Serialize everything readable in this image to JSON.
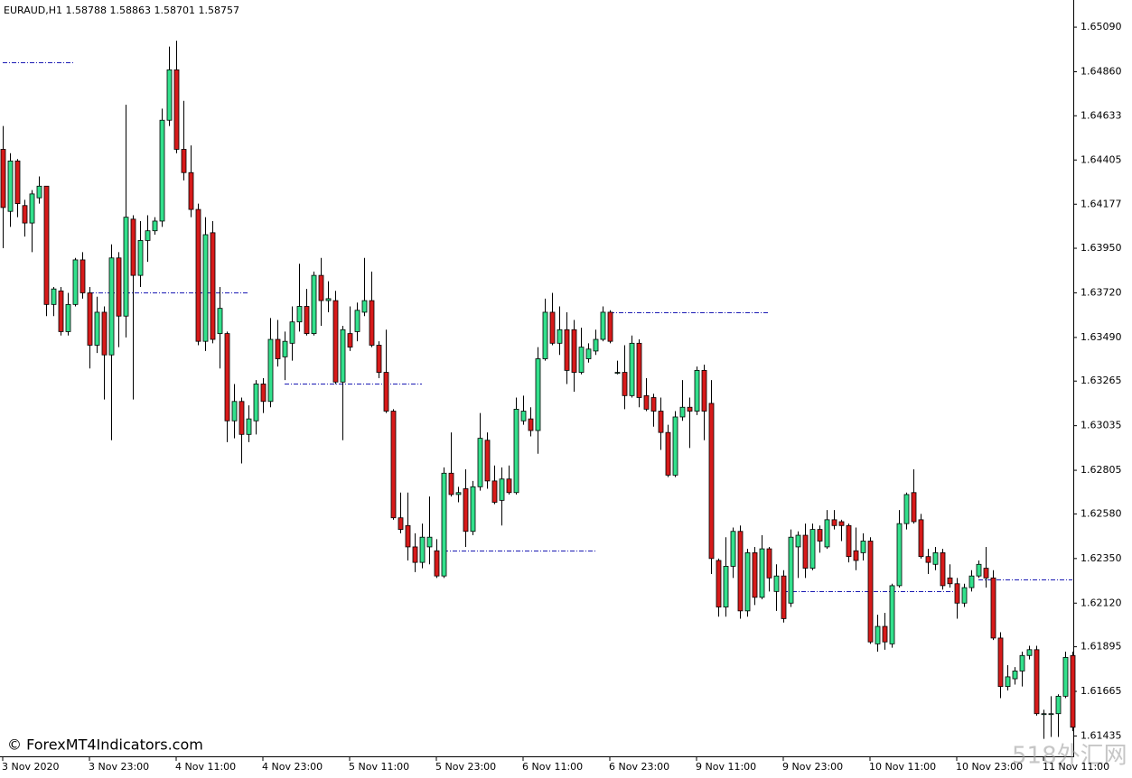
{
  "chart_data": {
    "type": "candlestick",
    "title": "EURAUD,H1  1.58788 1.58863 1.58701 1.58757",
    "watermark": "© ForexMT4Indicators.com",
    "watermark2": "518外汇网",
    "up_color": "#33e08c",
    "down_color": "#d71a1a",
    "level_color": "#1a1ab4",
    "xlim": [
      0,
      148
    ],
    "ylim": [
      1.6133,
      1.6523
    ],
    "yticks": [
      {
        "value": 1.6509,
        "label": "1.65090"
      },
      {
        "value": 1.6486,
        "label": "1.64860"
      },
      {
        "value": 1.64633,
        "label": "1.64633"
      },
      {
        "value": 1.64405,
        "label": "1.64405"
      },
      {
        "value": 1.64177,
        "label": "1.64177"
      },
      {
        "value": 1.6395,
        "label": "1.63950"
      },
      {
        "value": 1.6372,
        "label": "1.63720"
      },
      {
        "value": 1.6349,
        "label": "1.63490"
      },
      {
        "value": 1.63265,
        "label": "1.63265"
      },
      {
        "value": 1.63035,
        "label": "1.63035"
      },
      {
        "value": 1.62805,
        "label": "1.62805"
      },
      {
        "value": 1.6258,
        "label": "1.62580"
      },
      {
        "value": 1.6235,
        "label": "1.62350"
      },
      {
        "value": 1.6212,
        "label": "1.62120"
      },
      {
        "value": 1.61895,
        "label": "1.61895"
      },
      {
        "value": 1.61665,
        "label": "1.61665"
      },
      {
        "value": 1.61435,
        "label": "1.61435"
      }
    ],
    "xticks": [
      {
        "value": 0,
        "label": "3 Nov 2020"
      },
      {
        "value": 12,
        "label": "3 Nov 23:00"
      },
      {
        "value": 24,
        "label": "4 Nov 11:00"
      },
      {
        "value": 36,
        "label": "4 Nov 23:00"
      },
      {
        "value": 48,
        "label": "5 Nov 11:00"
      },
      {
        "value": 60,
        "label": "5 Nov 23:00"
      },
      {
        "value": 72,
        "label": "6 Nov 11:00"
      },
      {
        "value": 84,
        "label": "6 Nov 23:00"
      },
      {
        "value": 96,
        "label": "9 Nov 11:00"
      },
      {
        "value": 108,
        "label": "9 Nov 23:00"
      },
      {
        "value": 120,
        "label": "10 Nov 11:00"
      },
      {
        "value": 132,
        "label": "10 Nov 23:00"
      },
      {
        "value": 144,
        "label": "11 Nov 11:00"
      }
    ],
    "levels": [
      {
        "value": 1.6491,
        "from": 0,
        "to": 10
      },
      {
        "value": 1.6372,
        "from": 12,
        "to": 34
      },
      {
        "value": 1.6325,
        "from": 39,
        "to": 58
      },
      {
        "value": 1.6239,
        "from": 61,
        "to": 82
      },
      {
        "value": 1.6362,
        "from": 84,
        "to": 106
      },
      {
        "value": 1.6218,
        "from": 108,
        "to": 132
      },
      {
        "value": 1.6224,
        "from": 135,
        "to": 148
      }
    ],
    "open": [
      1.6446,
      1.6414,
      1.644,
      1.6417,
      1.6408,
      1.6421,
      1.6427,
      1.6366,
      1.6373,
      1.6352,
      1.6366,
      1.6389,
      1.6372,
      1.6345,
      1.6362,
      1.634,
      1.639,
      1.636,
      1.641,
      1.6381,
      1.6399,
      1.6404,
      1.6409,
      1.6461,
      1.6487,
      1.6446,
      1.6434,
      1.6415,
      1.6347,
      1.6403,
      1.6351,
      1.6351,
      1.6306,
      1.6316,
      1.6299,
      1.6306,
      1.6325,
      1.6316,
      1.6348,
      1.6339,
      1.6346,
      1.6357,
      1.6365,
      1.6351,
      1.6381,
      1.6368,
      1.6368,
      1.6326,
      1.6351,
      1.6352,
      1.6362,
      1.6368,
      1.6345,
      1.6331,
      1.6311,
      1.6256,
      1.6252,
      1.6241,
      1.6233,
      1.6241,
      1.6239,
      1.6226,
      1.6279,
      1.6268,
      1.6271,
      1.6249,
      1.6272,
      1.6296,
      1.6275,
      1.6265,
      1.6276,
      1.6269,
      1.6306,
      1.6307,
      1.6301,
      1.6338,
      1.6362,
      1.6346,
      1.6353,
      1.6353,
      1.6331,
      1.6338,
      1.6342,
      1.6348,
      1.6362,
      1.6331,
      1.6331,
      1.6319,
      1.6346,
      1.6319,
      1.6318,
      1.6311,
      1.63,
      1.6278,
      1.6308,
      1.6313,
      1.6311,
      1.6332,
      1.6315,
      1.6234,
      1.621,
      1.6231,
      1.6249,
      1.6208,
      1.6238,
      1.6215,
      1.624,
      1.6218,
      1.6226,
      1.6212,
      1.6241,
      1.6247,
      1.623,
      1.625,
      1.6241,
      1.6255,
      1.6254,
      1.6252,
      1.6239,
      1.6238,
      1.6244,
      1.6191,
      1.62,
      1.6191,
      1.6221,
      1.6253,
      1.6269,
      1.6255,
      1.6236,
      1.6232,
      1.6238,
      1.6225,
      1.6222,
      1.6212,
      1.622,
      1.6226,
      1.623,
      1.6225,
      1.6194,
      1.6169,
      1.6173,
      1.6177,
      1.6185,
      1.6188,
      1.6155,
      1.6155,
      1.6155,
      1.6164,
      1.6185
    ],
    "high": [
      1.6458,
      1.6444,
      1.6441,
      1.642,
      1.6425,
      1.6432,
      1.6427,
      1.6375,
      1.6375,
      1.6372,
      1.639,
      1.6393,
      1.6375,
      1.637,
      1.6365,
      1.6397,
      1.6393,
      1.6469,
      1.6412,
      1.6409,
      1.6412,
      1.6411,
      1.6467,
      1.6499,
      1.6502,
      1.6471,
      1.6448,
      1.6418,
      1.6411,
      1.6409,
      1.6375,
      1.6352,
      1.6325,
      1.6318,
      1.6314,
      1.6327,
      1.6328,
      1.6359,
      1.6358,
      1.6352,
      1.6365,
      1.6387,
      1.6374,
      1.6383,
      1.639,
      1.6378,
      1.6373,
      1.6355,
      1.6365,
      1.6367,
      1.639,
      1.6383,
      1.6347,
      1.6353,
      1.6312,
      1.6269,
      1.6269,
      1.6248,
      1.6253,
      1.6267,
      1.6245,
      1.6282,
      1.63,
      1.6272,
      1.6281,
      1.6275,
      1.631,
      1.63,
      1.6283,
      1.6282,
      1.6283,
      1.6318,
      1.6319,
      1.6313,
      1.6344,
      1.6369,
      1.6372,
      1.6365,
      1.6362,
      1.6358,
      1.6354,
      1.6346,
      1.6353,
      1.6365,
      1.6363,
      1.6337,
      1.6345,
      1.635,
      1.6348,
      1.6328,
      1.632,
      1.6318,
      1.6304,
      1.6311,
      1.6327,
      1.6318,
      1.6334,
      1.6335,
      1.6327,
      1.6235,
      1.6246,
      1.6251,
      1.6252,
      1.624,
      1.6241,
      1.6247,
      1.6241,
      1.6232,
      1.6229,
      1.625,
      1.6249,
      1.6253,
      1.6253,
      1.6252,
      1.626,
      1.626,
      1.6255,
      1.6253,
      1.6251,
      1.6248,
      1.6246,
      1.6206,
      1.6207,
      1.6222,
      1.626,
      1.6269,
      1.6281,
      1.6258,
      1.624,
      1.6241,
      1.624,
      1.6232,
      1.6225,
      1.6222,
      1.6229,
      1.6234,
      1.6241,
      1.6229,
      1.6197,
      1.618,
      1.6179,
      1.6187,
      1.619,
      1.619,
      1.6157,
      1.6164,
      1.6165,
      1.6187,
      1.6187
    ],
    "low": [
      1.6395,
      1.6406,
      1.6411,
      1.6401,
      1.6393,
      1.6418,
      1.636,
      1.636,
      1.635,
      1.635,
      1.6365,
      1.6369,
      1.6333,
      1.6341,
      1.6317,
      1.6296,
      1.6344,
      1.6349,
      1.6317,
      1.6375,
      1.6388,
      1.6402,
      1.6406,
      1.6458,
      1.6444,
      1.643,
      1.6411,
      1.6345,
      1.6342,
      1.6346,
      1.6333,
      1.6295,
      1.6297,
      1.6284,
      1.6295,
      1.6299,
      1.631,
      1.6313,
      1.6334,
      1.6327,
      1.6337,
      1.6352,
      1.635,
      1.635,
      1.6355,
      1.6362,
      1.6325,
      1.6296,
      1.6342,
      1.6347,
      1.636,
      1.6344,
      1.6328,
      1.631,
      1.6255,
      1.6248,
      1.6234,
      1.6228,
      1.623,
      1.6232,
      1.6225,
      1.6225,
      1.6267,
      1.6264,
      1.6241,
      1.6247,
      1.627,
      1.6271,
      1.6263,
      1.6252,
      1.6268,
      1.6268,
      1.6304,
      1.6298,
      1.6289,
      1.6337,
      1.6345,
      1.634,
      1.6325,
      1.6321,
      1.633,
      1.6336,
      1.634,
      1.6347,
      1.6346,
      1.633,
      1.6312,
      1.6318,
      1.6313,
      1.6311,
      1.6303,
      1.6291,
      1.6277,
      1.6277,
      1.6306,
      1.6292,
      1.6309,
      1.6296,
      1.6227,
      1.6205,
      1.6205,
      1.6225,
      1.6204,
      1.6205,
      1.6211,
      1.6214,
      1.6218,
      1.6208,
      1.6202,
      1.621,
      1.6225,
      1.6225,
      1.6229,
      1.6238,
      1.624,
      1.625,
      1.6244,
      1.6233,
      1.6229,
      1.6234,
      1.6191,
      1.6187,
      1.6188,
      1.6189,
      1.622,
      1.625,
      1.6253,
      1.6235,
      1.6227,
      1.6229,
      1.6219,
      1.622,
      1.6204,
      1.621,
      1.6218,
      1.6225,
      1.622,
      1.6193,
      1.6163,
      1.6167,
      1.617,
      1.6169,
      1.6183,
      1.6154,
      1.6142,
      1.6143,
      1.6143,
      1.6163,
      1.6146
    ],
    "close": [
      1.6416,
      1.644,
      1.6418,
      1.6408,
      1.6423,
      1.6427,
      1.6366,
      1.6374,
      1.6352,
      1.6366,
      1.6389,
      1.6372,
      1.6345,
      1.6362,
      1.634,
      1.639,
      1.636,
      1.6411,
      1.6381,
      1.6399,
      1.6404,
      1.6409,
      1.6461,
      1.6487,
      1.6446,
      1.6434,
      1.6415,
      1.6347,
      1.6402,
      1.6348,
      1.6364,
      1.6306,
      1.6316,
      1.6299,
      1.6307,
      1.6325,
      1.6316,
      1.6348,
      1.6338,
      1.6347,
      1.6357,
      1.6365,
      1.6351,
      1.6381,
      1.6368,
      1.6369,
      1.6326,
      1.6353,
      1.6344,
      1.6363,
      1.6368,
      1.6345,
      1.6331,
      1.6311,
      1.6256,
      1.625,
      1.6241,
      1.6233,
      1.6246,
      1.6246,
      1.6226,
      1.6279,
      1.6268,
      1.6269,
      1.6249,
      1.6272,
      1.6297,
      1.6275,
      1.6264,
      1.6276,
      1.6269,
      1.6312,
      1.6311,
      1.6301,
      1.6338,
      1.6362,
      1.6346,
      1.6353,
      1.6332,
      1.6331,
      1.6344,
      1.6343,
      1.6348,
      1.6362,
      1.6347,
      1.6331,
      1.6319,
      1.6346,
      1.6318,
      1.6312,
      1.6311,
      1.63,
      1.6278,
      1.6308,
      1.6313,
      1.6311,
      1.6332,
      1.6311,
      1.6235,
      1.621,
      1.6231,
      1.6249,
      1.6208,
      1.6238,
      1.6215,
      1.624,
      1.6225,
      1.6226,
      1.6204,
      1.6246,
      1.6247,
      1.623,
      1.625,
      1.6244,
      1.6255,
      1.6252,
      1.6252,
      1.6236,
      1.6234,
      1.6244,
      1.6192,
      1.62,
      1.6192,
      1.6221,
      1.6253,
      1.6268,
      1.6254,
      1.6236,
      1.6233,
      1.6238,
      1.6221,
      1.6222,
      1.6212,
      1.622,
      1.6226,
      1.6232,
      1.6225,
      1.6194,
      1.6169,
      1.6174,
      1.6177,
      1.6185,
      1.6188,
      1.6155,
      1.6155,
      1.6155,
      1.6164,
      1.6184,
      1.6148
    ]
  }
}
